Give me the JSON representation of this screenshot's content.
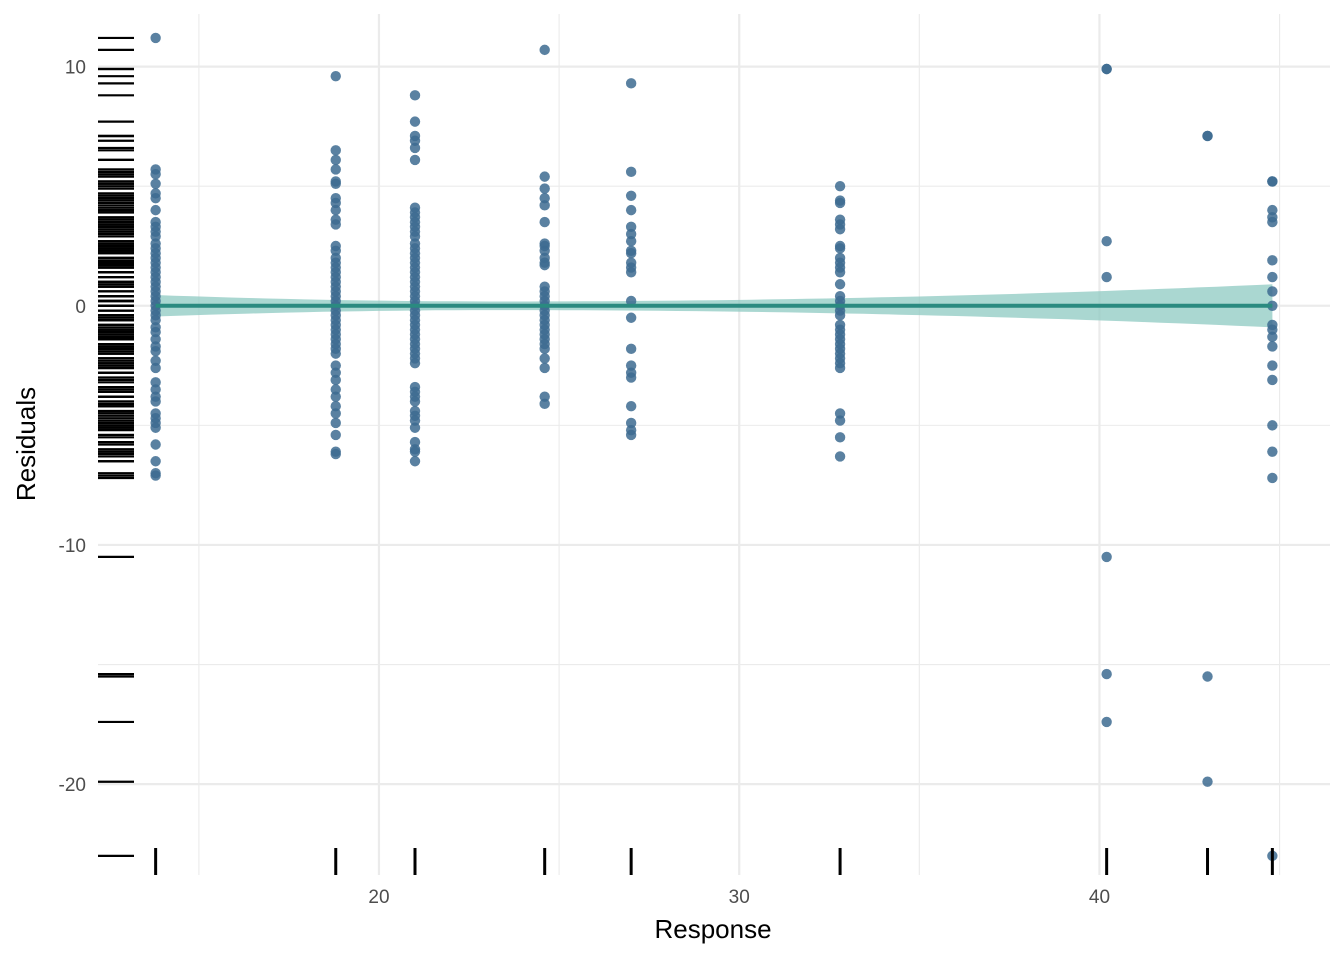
{
  "chart_data": {
    "type": "scatter",
    "title": "",
    "xlabel": "Response",
    "ylabel": "Residuals",
    "xlim": [
      12.2,
      46.4
    ],
    "ylim": [
      -23.8,
      12.2
    ],
    "x_ticks": [
      20,
      30,
      40
    ],
    "x_tick_labels": [
      "20",
      "30",
      "40"
    ],
    "y_ticks": [
      -20,
      -10,
      0,
      10
    ],
    "y_tick_labels": [
      "-20",
      "-10",
      "0",
      "10"
    ],
    "x_minor_ticks": [
      15,
      25,
      35,
      45
    ],
    "y_minor_ticks": [
      -15,
      -5,
      5
    ],
    "grid": true,
    "legend": "none",
    "rug": true,
    "colors": {
      "points": "#3d6b91",
      "fit_line": "#2a8a80",
      "band": "#8ec9c1",
      "rug": "#000000",
      "grid": "#ebebeb"
    },
    "points": [
      {
        "x": 13.8,
        "y": [
          11.2,
          5.7,
          5.5,
          5.1,
          4.7,
          4.5,
          4.0,
          3.5,
          3.3,
          3.1,
          2.9,
          2.6,
          2.4,
          2.2,
          2.0,
          1.8,
          1.6,
          1.4,
          1.2,
          1.0,
          0.8,
          0.6,
          0.4,
          0.2,
          0.0,
          -0.2,
          -0.4,
          -0.6,
          -0.9,
          -1.1,
          -1.4,
          -1.7,
          -1.9,
          -2.3,
          -2.6,
          -3.2,
          -3.5,
          -3.8,
          -4.0,
          -4.5,
          -4.7,
          -4.9,
          -5.1,
          -5.8,
          -6.5,
          -7.0,
          -7.1
        ]
      },
      {
        "x": 18.8,
        "y": [
          9.6,
          6.5,
          6.1,
          5.7,
          5.2,
          5.1,
          4.5,
          4.3,
          4.0,
          3.6,
          3.4,
          2.5,
          2.3,
          2.0,
          1.8,
          1.6,
          1.4,
          1.2,
          1.0,
          0.8,
          0.6,
          0.4,
          0.2,
          0.0,
          -0.2,
          -0.4,
          -0.6,
          -0.8,
          -1.0,
          -1.2,
          -1.4,
          -1.6,
          -1.8,
          -2.0,
          -2.5,
          -2.8,
          -3.1,
          -3.5,
          -3.8,
          -4.2,
          -4.5,
          -4.9,
          -5.4,
          -6.1,
          -6.2
        ]
      },
      {
        "x": 21.0,
        "y": [
          8.8,
          7.7,
          7.1,
          6.9,
          6.6,
          6.1,
          4.1,
          3.9,
          3.7,
          3.5,
          3.3,
          3.1,
          2.9,
          2.6,
          2.4,
          2.2,
          2.0,
          1.8,
          1.6,
          1.4,
          1.2,
          1.0,
          0.8,
          0.6,
          0.4,
          0.2,
          0.0,
          -0.2,
          -0.4,
          -0.6,
          -0.8,
          -1.0,
          -1.2,
          -1.4,
          -1.6,
          -1.8,
          -2.0,
          -2.2,
          -2.4,
          -3.4,
          -3.6,
          -3.8,
          -4.0,
          -4.4,
          -4.6,
          -4.8,
          -5.1,
          -5.7,
          -6.0,
          -6.1,
          -6.5
        ]
      },
      {
        "x": 24.6,
        "y": [
          10.7,
          5.4,
          4.9,
          4.5,
          4.2,
          3.5,
          2.6,
          2.5,
          2.3,
          2.0,
          1.8,
          1.7,
          0.8,
          0.6,
          0.4,
          0.2,
          0.0,
          -0.2,
          -0.4,
          -0.6,
          -0.8,
          -1.0,
          -1.2,
          -1.4,
          -1.6,
          -1.8,
          -2.2,
          -2.6,
          -3.8,
          -4.1
        ]
      },
      {
        "x": 27.0,
        "y": [
          9.3,
          5.6,
          4.6,
          4.0,
          3.3,
          3.0,
          2.7,
          2.3,
          2.2,
          1.8,
          1.6,
          1.4,
          0.2,
          -0.5,
          -1.8,
          -2.5,
          -2.8,
          -3.0,
          -4.2,
          -4.9,
          -5.2,
          -5.4
        ]
      },
      {
        "x": 32.8,
        "y": [
          5.0,
          4.4,
          4.3,
          3.6,
          3.4,
          3.2,
          2.5,
          2.4,
          2.0,
          1.8,
          1.6,
          1.4,
          0.9,
          0.4,
          0.2,
          0.0,
          -0.2,
          -0.4,
          -0.8,
          -1.0,
          -1.2,
          -1.4,
          -1.6,
          -1.8,
          -2.0,
          -2.2,
          -2.4,
          -2.6,
          -4.5,
          -4.8,
          -5.5,
          -6.3
        ]
      },
      {
        "x": 40.2,
        "y": [
          9.9,
          9.9,
          2.7,
          1.2,
          -10.5,
          -15.4,
          -17.4
        ]
      },
      {
        "x": 43.0,
        "y": [
          7.1,
          7.1,
          -15.5,
          -19.9
        ]
      },
      {
        "x": 44.8,
        "y": [
          5.2,
          5.2,
          4.0,
          3.7,
          3.5,
          1.9,
          1.2,
          0.6,
          0.0,
          -0.8,
          -1.0,
          -1.3,
          -1.7,
          -2.5,
          -3.1,
          -5.0,
          -6.1,
          -7.2,
          -23.0
        ]
      }
    ],
    "fit": {
      "x": [
        13.8,
        44.8
      ],
      "y": [
        0.0,
        0.0
      ],
      "ci_lower": [
        -0.45,
        -0.9
      ],
      "ci_upper": [
        0.45,
        0.9
      ],
      "ci_center": 23.5
    }
  }
}
